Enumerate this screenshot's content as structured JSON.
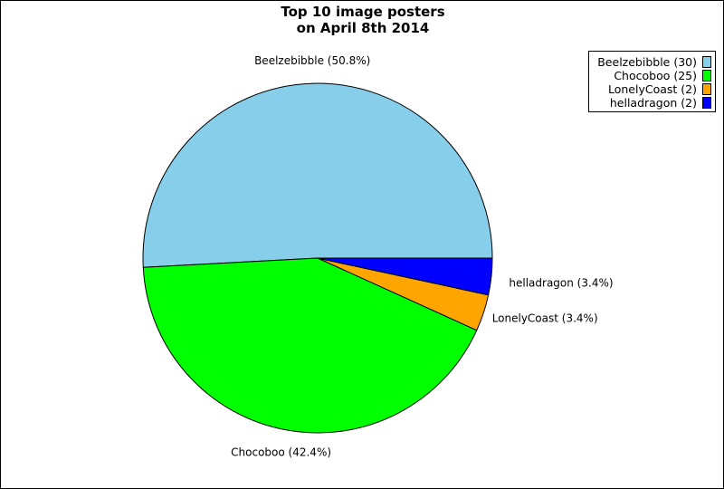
{
  "chart_data": {
    "type": "pie",
    "title": [
      "Top 10 image posters",
      "on April 8th 2014"
    ],
    "slices": [
      {
        "name": "Beelzebibble",
        "value": 30,
        "percent_label": "Beelzebibble (50.8%)",
        "legend_label": "Beelzebibble (30)",
        "color": "#87CEEB"
      },
      {
        "name": "Chocoboo",
        "value": 25,
        "percent_label": "Chocoboo (42.4%)",
        "legend_label": "Chocoboo (25)",
        "color": "#00FF00"
      },
      {
        "name": "LonelyCoast",
        "value": 2,
        "percent_label": "LonelyCoast (3.4%)",
        "legend_label": "LonelyCoast (2)",
        "color": "#FFA500"
      },
      {
        "name": "helladragon",
        "value": 2,
        "percent_label": "helladragon (3.4%)",
        "legend_label": "helladragon (2)",
        "color": "#0000FF"
      }
    ],
    "legend_position": "top-right"
  }
}
